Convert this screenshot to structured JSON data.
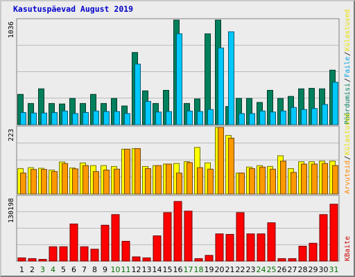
{
  "chart_data": {
    "title": "Kasutuspäevad August 2019",
    "type": "bar",
    "categories": [
      "1",
      "2",
      "3",
      "4",
      "5",
      "6",
      "7",
      "8",
      "9",
      "10",
      "11",
      "12",
      "13",
      "14",
      "15",
      "16",
      "17",
      "18",
      "19",
      "20",
      "21",
      "22",
      "23",
      "24",
      "25",
      "26",
      "27",
      "28",
      "29",
      "30",
      "31"
    ],
    "weekend_days": [
      "3",
      "4",
      "10",
      "11",
      "17",
      "18",
      "24",
      "25",
      "31"
    ],
    "panels": [
      {
        "axis_max_label": "1036",
        "ymax": 1036,
        "series": [
          {
            "name": "Külastused",
            "color": "#00805c",
            "values": [
              300,
              210,
              355,
              210,
              205,
              260,
              210,
              300,
              210,
              260,
              185,
              715,
              335,
              210,
              340,
              1036,
              210,
              255,
              900,
              1036,
              180,
              260,
              260,
              220,
              340,
              260,
              280,
              355,
              360,
              355,
              540
            ]
          },
          {
            "name": "Faile",
            "color": "#00c8ff",
            "values": [
              120,
              115,
              115,
              120,
              135,
              110,
              120,
              135,
              130,
              130,
              110,
              600,
              230,
              125,
              130,
              900,
              135,
              130,
              150,
              760,
              920,
              110,
              110,
              135,
              125,
              135,
              170,
              150,
              160,
              200,
              420
            ]
          }
        ],
        "labels": [
          {
            "text": "Pöördumisi",
            "color": "#008060"
          },
          {
            "text": "Faile",
            "color": "#00a0e0"
          },
          {
            "text": "Külastused",
            "color": "#e8e000"
          }
        ]
      },
      {
        "axis_max_label": "223",
        "ymax": 223,
        "series": [
          {
            "name": "Külastused",
            "color": "#ffff00",
            "values": [
              85,
              88,
              86,
              80,
              107,
              87,
              104,
              95,
              95,
              92,
              150,
              152,
              92,
              95,
              100,
              102,
              108,
              156,
              104,
              223,
              196,
              70,
              90,
              95,
              92,
              128,
              85,
              108,
              108,
              110,
              110
            ]
          },
          {
            "name": "Arvuteid",
            "color": "#ff9900",
            "values": [
              70,
              82,
              82,
              75,
              102,
              84,
              95,
              75,
              80,
              83,
              150,
              152,
              85,
              95,
              100,
              70,
              105,
              88,
              83,
              223,
              187,
              70,
              85,
              90,
              83,
              110,
              72,
              100,
              100,
              102,
              95
            ]
          }
        ],
        "labels": [
          {
            "text": "Arvuteid",
            "color": "#ff8800"
          },
          {
            "text": "Külastused",
            "color": "#e8e000"
          }
        ]
      },
      {
        "axis_max_label": "130198",
        "ymax": 130198,
        "series": [
          {
            "name": "KBaite",
            "color": "#ff0000",
            "values": [
              6500,
              5000,
              3500,
              29000,
              29000,
              75000,
              29000,
              24000,
              72500,
              94000,
              40000,
              8500,
              6500,
              51000,
              98000,
              120500,
              101000,
              5000,
              11500,
              55000,
              54000,
              98000,
              55000,
              55000,
              77500,
              5000,
              5000,
              30000,
              36000,
              94000,
              115000
            ]
          }
        ],
        "labels": [
          {
            "text": "KBaite",
            "color": "#cc0000"
          }
        ]
      }
    ]
  },
  "colors": {
    "weekday_label": "#000000",
    "weekend_label": "#007000",
    "title": "#0000cc"
  }
}
